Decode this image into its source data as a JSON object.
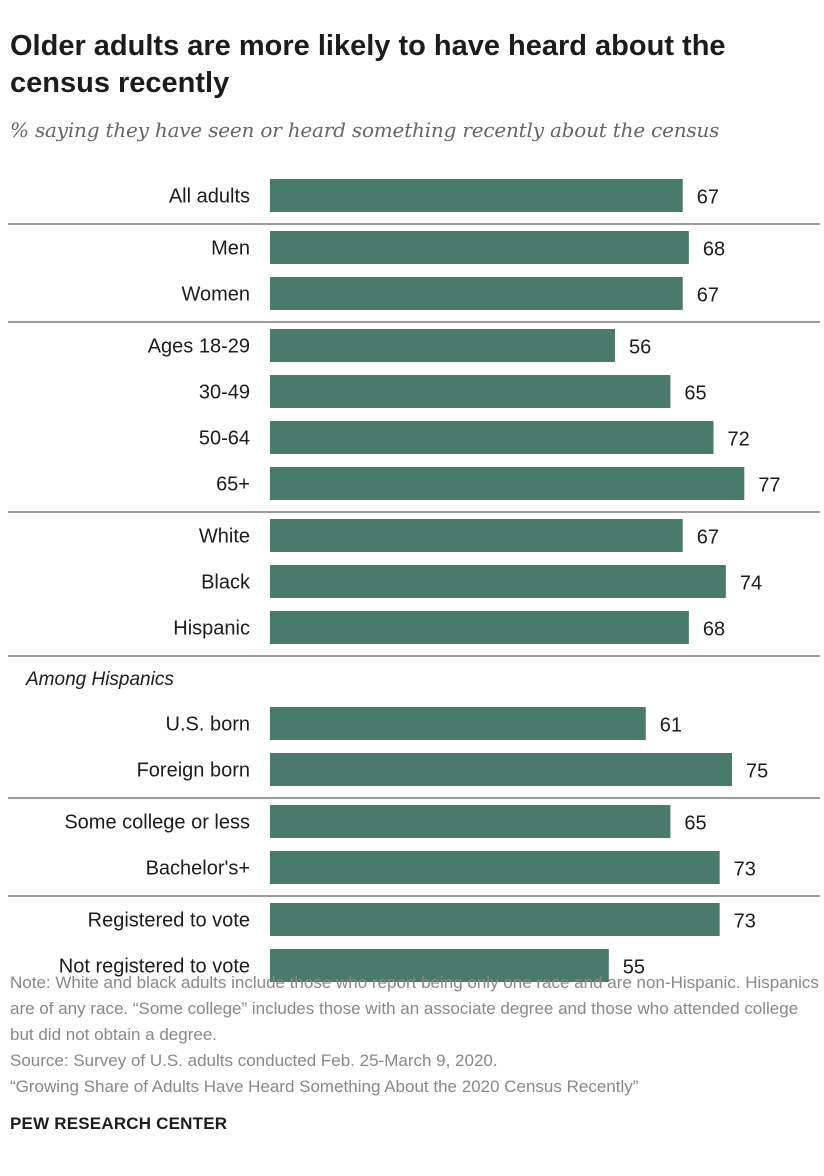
{
  "title": "Older adults are more likely to have heard about the census recently",
  "subtitle": "% saying they have seen or heard something recently about the census",
  "colors": {
    "bar": "#4a7a6b",
    "divider": "#9c9c9c"
  },
  "chart_data": {
    "type": "bar",
    "orientation": "horizontal",
    "xlim": [
      0,
      100
    ],
    "categories": [
      "All adults",
      "Men",
      "Women",
      "Ages 18-29",
      "30-49",
      "50-64",
      "65+",
      "White",
      "Black",
      "Hispanic",
      "U.S. born",
      "Foreign born",
      "Some college or less",
      "Bachelor's+",
      "Registered to vote",
      "Not registered to vote"
    ],
    "values": [
      67,
      68,
      67,
      56,
      65,
      72,
      77,
      67,
      74,
      68,
      61,
      75,
      65,
      73,
      73,
      55
    ],
    "group_heading": "Among Hispanics",
    "groups": [
      [
        "All adults"
      ],
      [
        "Men",
        "Women"
      ],
      [
        "Ages 18-29",
        "30-49",
        "50-64",
        "65+"
      ],
      [
        "White",
        "Black",
        "Hispanic"
      ],
      [
        "U.S. born",
        "Foreign born"
      ],
      [
        "Some college or less",
        "Bachelor's+"
      ],
      [
        "Registered to vote",
        "Not registered to vote"
      ]
    ]
  },
  "notes": [
    "Note: White and black adults include those who report being only one race and are non-Hispanic. Hispanics are of any race. “Some college” includes those with an associate degree and those who attended college but did not obtain a degree.",
    "Source: Survey of U.S. adults conducted Feb. 25-March 9, 2020.",
    "“Growing Share of Adults Have Heard Something About the 2020 Census Recently”"
  ],
  "brand": "PEW RESEARCH CENTER"
}
